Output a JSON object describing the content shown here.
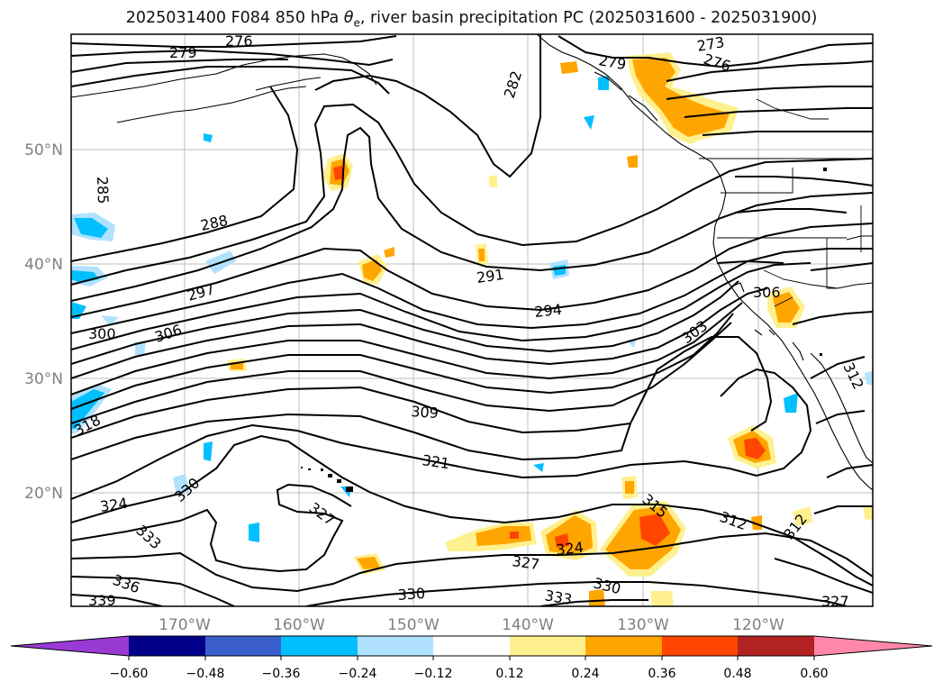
{
  "title": {
    "prefix": "2025031400 F084 850 hPa ",
    "theta_symbol": "θ",
    "theta_sub": "e",
    "suffix": ", river basin precipitation PC (2025031600 - 2025031900)"
  },
  "axes": {
    "lat_labels": [
      "50°N",
      "40°N",
      "30°N",
      "20°N"
    ],
    "lon_labels": [
      "170°W",
      "160°W",
      "150°W",
      "140°W",
      "130°W",
      "120°W"
    ]
  },
  "contour_labels": [
    {
      "text": "279"
    },
    {
      "text": "276"
    },
    {
      "text": "273"
    },
    {
      "text": "276"
    },
    {
      "text": "279"
    },
    {
      "text": "282"
    },
    {
      "text": "285"
    },
    {
      "text": "288"
    },
    {
      "text": "291"
    },
    {
      "text": "294"
    },
    {
      "text": "297"
    },
    {
      "text": "300"
    },
    {
      "text": "306"
    },
    {
      "text": "303"
    },
    {
      "text": "306"
    },
    {
      "text": "309"
    },
    {
      "text": "318"
    },
    {
      "text": "312"
    },
    {
      "text": "321"
    },
    {
      "text": "324"
    },
    {
      "text": "330"
    },
    {
      "text": "327"
    },
    {
      "text": "333"
    },
    {
      "text": "336"
    },
    {
      "text": "339"
    },
    {
      "text": "315"
    },
    {
      "text": "312"
    },
    {
      "text": "324"
    },
    {
      "text": "327"
    },
    {
      "text": "330"
    },
    {
      "text": "330"
    },
    {
      "text": "333"
    },
    {
      "text": "312"
    },
    {
      "text": "327"
    }
  ],
  "colorbar": {
    "colors": [
      "#9a3ad4",
      "#00008b",
      "#3a5fcd",
      "#00bfff",
      "#b0e2ff",
      "#ffffff",
      "#fff08f",
      "#ffa500",
      "#ff4500",
      "#b22222",
      "#ff88aa"
    ],
    "ticks": [
      "−0.60",
      "−0.48",
      "−0.36",
      "−0.24",
      "−0.12",
      "0.12",
      "0.24",
      "0.36",
      "0.48",
      "0.60"
    ]
  }
}
